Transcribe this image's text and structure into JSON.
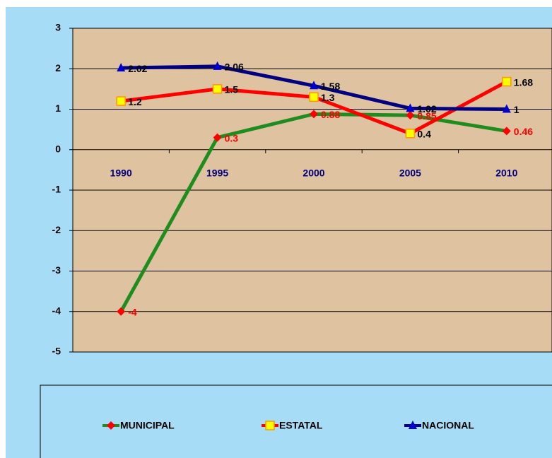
{
  "chart_data": {
    "type": "line",
    "categories": [
      "1990",
      "1995",
      "2000",
      "2005",
      "2010"
    ],
    "series": [
      {
        "name": "MUNICIPAL",
        "color": "#1f8c1f",
        "marker_color": "#ff0000",
        "label_color": "#ff0000",
        "marker": "diamond",
        "values": [
          -4,
          0.3,
          0.88,
          0.85,
          0.46
        ]
      },
      {
        "name": "ESTATAL",
        "color": "#ff0000",
        "marker_color": "#ffff00",
        "label_color": "#000000",
        "marker": "square",
        "values": [
          1.2,
          1.5,
          1.3,
          0.4,
          1.68
        ]
      },
      {
        "name": "NACIONAL",
        "color": "#000080",
        "marker_color": "#0000cc",
        "label_color": "#000000",
        "marker": "triangle",
        "values": [
          2.02,
          2.06,
          1.58,
          1.02,
          1
        ]
      }
    ],
    "ylim": [
      -5,
      3
    ],
    "yticks": [
      -5,
      -4,
      -3,
      -2,
      -1,
      0,
      1,
      2,
      3
    ],
    "grid": true,
    "legend": "bottom"
  }
}
